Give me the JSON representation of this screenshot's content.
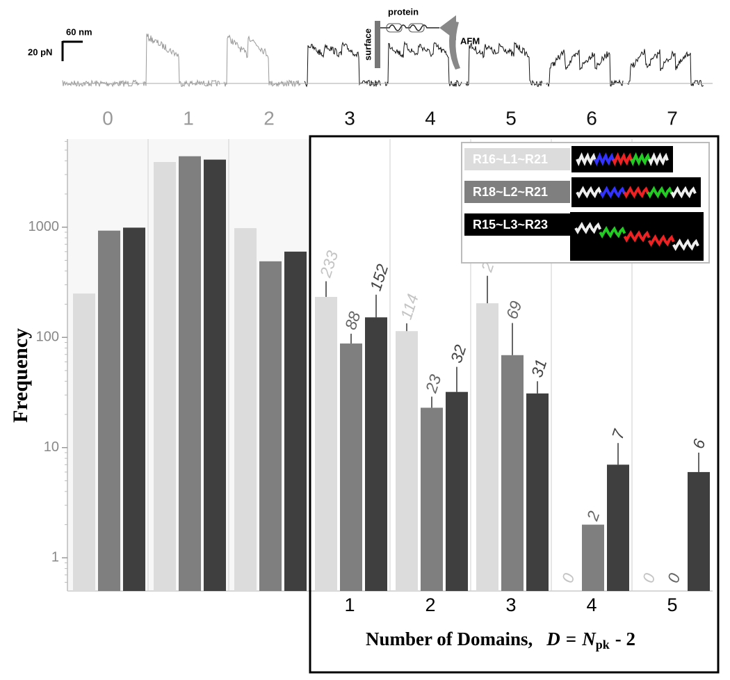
{
  "chart_data": {
    "type": "bar",
    "log_scale": true,
    "categories": [
      "0",
      "1",
      "2",
      "3",
      "4",
      "5",
      "6",
      "7"
    ],
    "domain_categories": [
      null,
      null,
      null,
      "1",
      "2",
      "3",
      "4",
      "5"
    ],
    "ylabel": "Frequency",
    "xlabel": [
      "Number of Domains,",
      "D",
      "=",
      "N",
      "pk",
      "- 2"
    ],
    "ylim": [
      0.5,
      6300
    ],
    "yticks": [
      1,
      10,
      100,
      1000
    ],
    "series": [
      {
        "name": "R16~L1~R21",
        "color": "#dcdcdc",
        "values": [
          250,
          3900,
          980,
          233,
          114,
          204,
          0,
          0
        ],
        "errors": [
          null,
          null,
          null,
          90,
          20,
          158,
          null,
          null
        ]
      },
      {
        "name": "R18~L2~R21",
        "color": "#7f7f7f",
        "values": [
          930,
          4400,
          490,
          88,
          23,
          69,
          2,
          0
        ],
        "errors": [
          null,
          null,
          null,
          20,
          6,
          66,
          null,
          null
        ]
      },
      {
        "name": "R15~L3~R23",
        "color": "#3f3f3f",
        "values": [
          990,
          4100,
          600,
          152,
          32,
          31,
          7,
          6
        ],
        "errors": [
          null,
          null,
          null,
          92,
          22,
          9,
          4,
          3
        ]
      }
    ],
    "scale_bar": {
      "x": "60 nm",
      "y": "20 pN"
    },
    "diagram": {
      "protein": "protein",
      "surface": "surface",
      "tip": "AFM"
    }
  }
}
